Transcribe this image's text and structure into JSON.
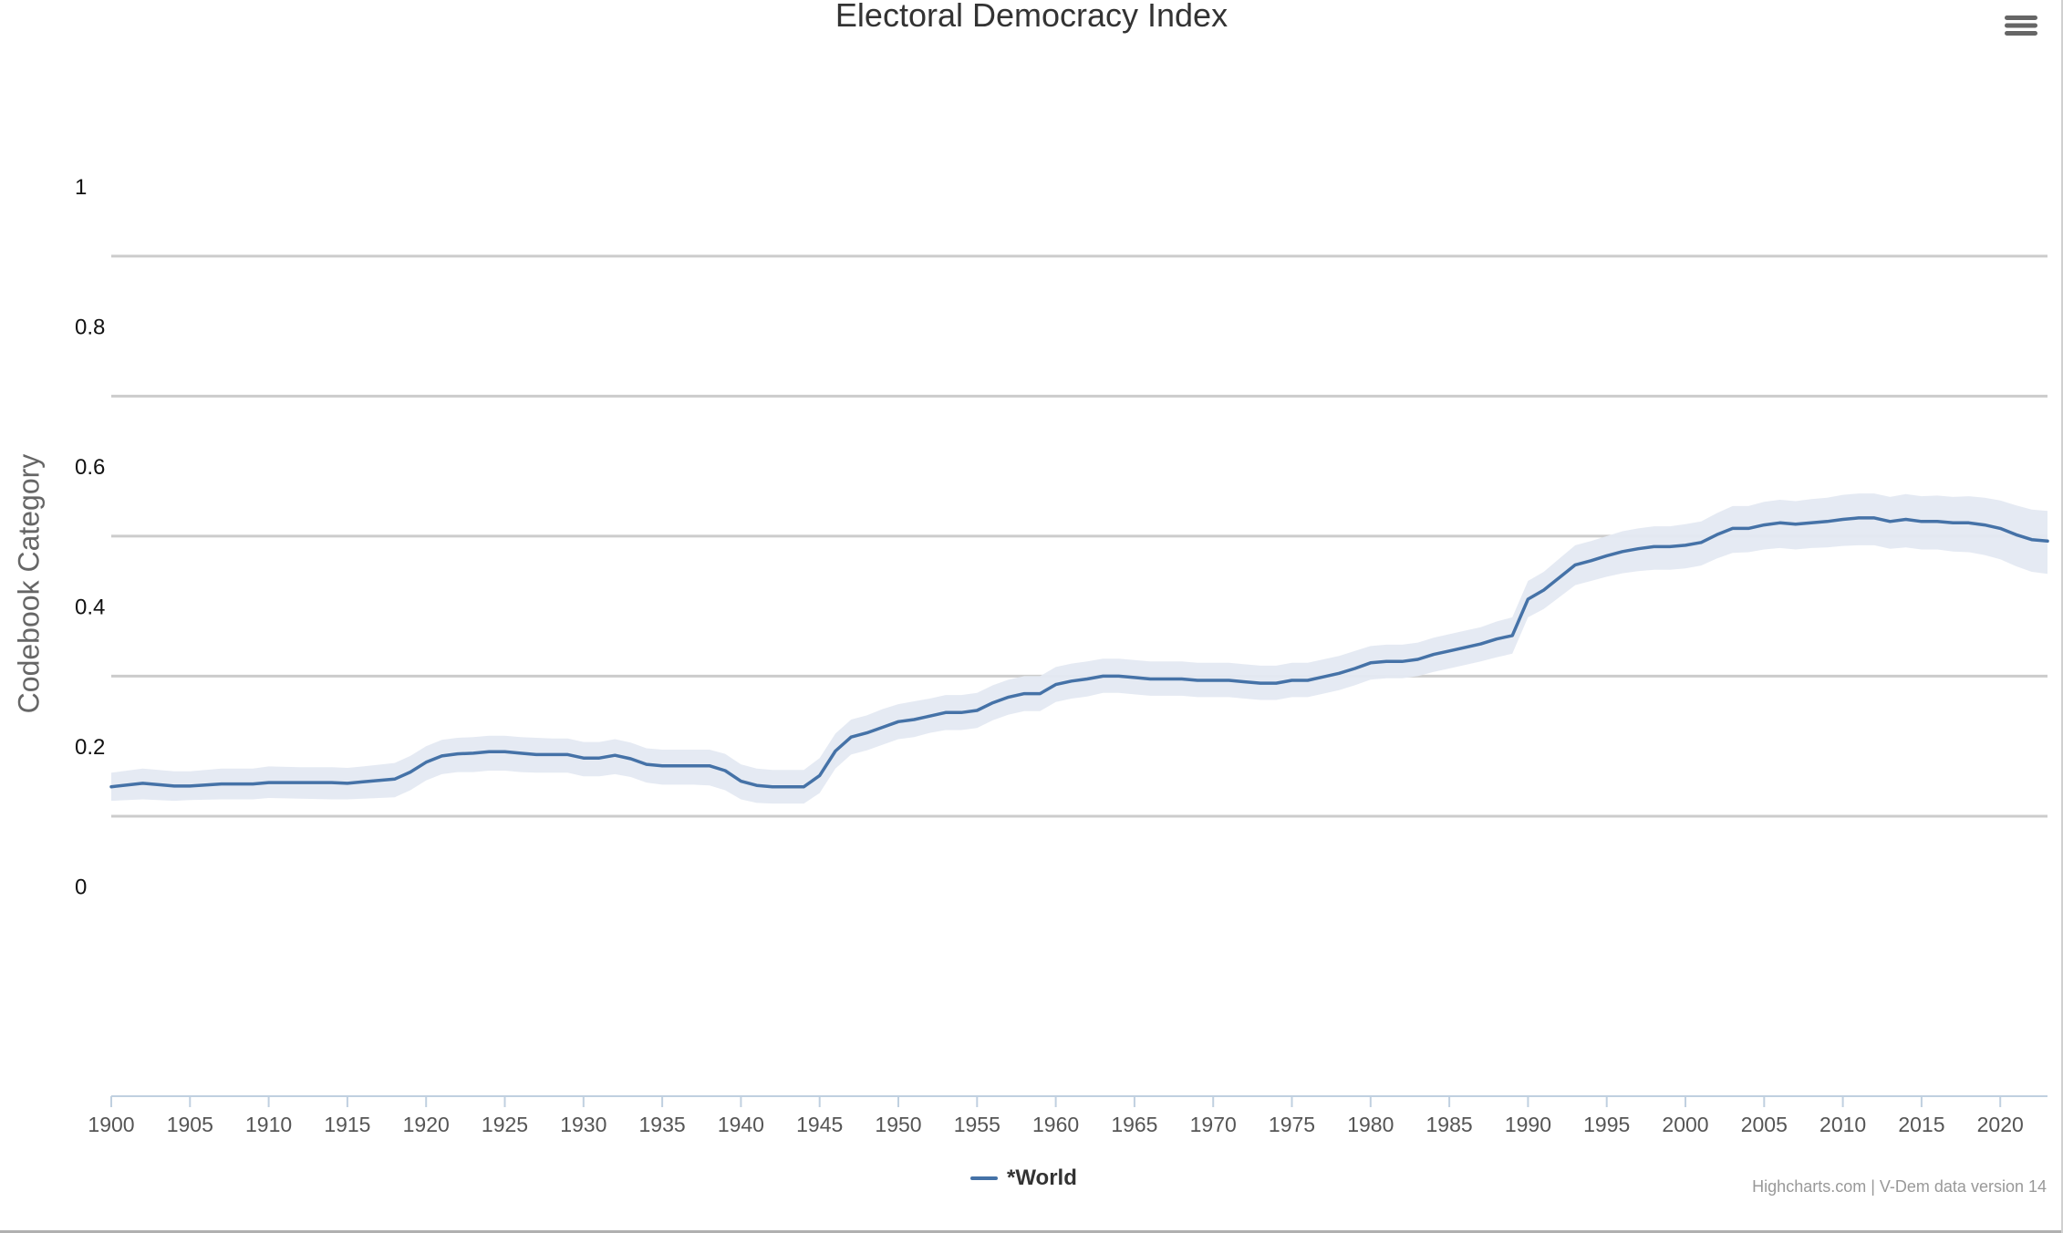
{
  "chart_data": {
    "type": "line",
    "title": "Electoral Democracy Index",
    "ylabel": "Codebook Category",
    "xlabel": "",
    "ylim": [
      -0.3,
      1.06
    ],
    "xlim": [
      1900,
      2023
    ],
    "y_ticks": [
      "1",
      "0.8",
      "0.6",
      "0.4",
      "0.2",
      "0"
    ],
    "x_ticks": [
      "1900",
      "1905",
      "1910",
      "1915",
      "1920",
      "1925",
      "1930",
      "1935",
      "1940",
      "1945",
      "1950",
      "1955",
      "1960",
      "1965",
      "1970",
      "1975",
      "1980",
      "1985",
      "1990",
      "1995",
      "2000",
      "2005",
      "2010",
      "2015",
      "2020"
    ],
    "grid": true,
    "legend_position": "bottom-center",
    "colors": {
      "line": "#4572a7",
      "band": "#e4e9f2",
      "grid": "#cccccc",
      "axis": "#c0d0e0"
    },
    "series": [
      {
        "name": "*World",
        "x": [
          1900,
          1902,
          1904,
          1905,
          1907,
          1909,
          1910,
          1912,
          1914,
          1915,
          1916,
          1918,
          1919,
          1920,
          1921,
          1922,
          1923,
          1924,
          1925,
          1926,
          1927,
          1928,
          1929,
          1930,
          1931,
          1932,
          1933,
          1934,
          1935,
          1936,
          1937,
          1938,
          1939,
          1940,
          1941,
          1942,
          1943,
          1944,
          1945,
          1946,
          1947,
          1948,
          1949,
          1950,
          1951,
          1952,
          1953,
          1954,
          1955,
          1956,
          1957,
          1958,
          1959,
          1960,
          1961,
          1962,
          1963,
          1964,
          1965,
          1966,
          1967,
          1968,
          1969,
          1970,
          1971,
          1972,
          1973,
          1974,
          1975,
          1976,
          1977,
          1978,
          1979,
          1980,
          1981,
          1982,
          1983,
          1984,
          1985,
          1986,
          1987,
          1988,
          1989,
          1990,
          1991,
          1992,
          1993,
          1994,
          1995,
          1996,
          1997,
          1998,
          1999,
          2000,
          2001,
          2002,
          2003,
          2004,
          2005,
          2006,
          2007,
          2008,
          2009,
          2010,
          2011,
          2012,
          2013,
          2014,
          2015,
          2016,
          2017,
          2018,
          2019,
          2020,
          2021,
          2022,
          2023
        ],
        "values": [
          0.142,
          0.147,
          0.143,
          0.143,
          0.146,
          0.146,
          0.148,
          0.148,
          0.148,
          0.147,
          0.149,
          0.153,
          0.163,
          0.177,
          0.186,
          0.189,
          0.19,
          0.192,
          0.192,
          0.19,
          0.188,
          0.188,
          0.188,
          0.183,
          0.183,
          0.187,
          0.182,
          0.174,
          0.172,
          0.172,
          0.172,
          0.172,
          0.165,
          0.15,
          0.144,
          0.142,
          0.142,
          0.142,
          0.158,
          0.193,
          0.213,
          0.219,
          0.227,
          0.235,
          0.238,
          0.243,
          0.248,
          0.248,
          0.251,
          0.262,
          0.27,
          0.275,
          0.275,
          0.288,
          0.293,
          0.296,
          0.3,
          0.3,
          0.298,
          0.296,
          0.296,
          0.296,
          0.294,
          0.294,
          0.294,
          0.292,
          0.29,
          0.29,
          0.294,
          0.294,
          0.299,
          0.304,
          0.311,
          0.319,
          0.321,
          0.321,
          0.324,
          0.331,
          0.336,
          0.341,
          0.346,
          0.353,
          0.358,
          0.41,
          0.423,
          0.441,
          0.459,
          0.465,
          0.472,
          0.478,
          0.482,
          0.485,
          0.485,
          0.487,
          0.491,
          0.502,
          0.511,
          0.511,
          0.516,
          0.519,
          0.517,
          0.519,
          0.521,
          0.524,
          0.526,
          0.526,
          0.521,
          0.524,
          0.521,
          0.521,
          0.519,
          0.519,
          0.516,
          0.511,
          0.502,
          0.495,
          0.493
        ],
        "lower": [
          0.122,
          0.124,
          0.122,
          0.123,
          0.124,
          0.124,
          0.126,
          0.125,
          0.124,
          0.124,
          0.125,
          0.127,
          0.137,
          0.151,
          0.16,
          0.163,
          0.163,
          0.165,
          0.165,
          0.163,
          0.162,
          0.162,
          0.162,
          0.157,
          0.157,
          0.16,
          0.156,
          0.148,
          0.145,
          0.145,
          0.145,
          0.144,
          0.137,
          0.124,
          0.119,
          0.118,
          0.118,
          0.118,
          0.133,
          0.168,
          0.188,
          0.194,
          0.202,
          0.21,
          0.213,
          0.219,
          0.223,
          0.223,
          0.226,
          0.237,
          0.245,
          0.25,
          0.25,
          0.263,
          0.268,
          0.271,
          0.276,
          0.276,
          0.274,
          0.272,
          0.272,
          0.272,
          0.27,
          0.27,
          0.27,
          0.268,
          0.266,
          0.266,
          0.27,
          0.27,
          0.275,
          0.28,
          0.287,
          0.295,
          0.297,
          0.297,
          0.3,
          0.306,
          0.311,
          0.316,
          0.321,
          0.327,
          0.332,
          0.384,
          0.396,
          0.413,
          0.43,
          0.436,
          0.442,
          0.447,
          0.45,
          0.452,
          0.452,
          0.454,
          0.458,
          0.468,
          0.476,
          0.477,
          0.481,
          0.483,
          0.481,
          0.483,
          0.484,
          0.486,
          0.487,
          0.487,
          0.482,
          0.484,
          0.481,
          0.481,
          0.478,
          0.477,
          0.473,
          0.467,
          0.457,
          0.449,
          0.446
        ],
        "upper": [
          0.162,
          0.168,
          0.164,
          0.164,
          0.168,
          0.168,
          0.171,
          0.17,
          0.17,
          0.169,
          0.171,
          0.176,
          0.186,
          0.2,
          0.209,
          0.212,
          0.213,
          0.215,
          0.215,
          0.213,
          0.212,
          0.211,
          0.211,
          0.206,
          0.206,
          0.21,
          0.205,
          0.197,
          0.195,
          0.195,
          0.195,
          0.195,
          0.189,
          0.174,
          0.168,
          0.166,
          0.166,
          0.166,
          0.183,
          0.218,
          0.238,
          0.244,
          0.253,
          0.26,
          0.264,
          0.268,
          0.273,
          0.273,
          0.276,
          0.287,
          0.295,
          0.3,
          0.3,
          0.313,
          0.318,
          0.321,
          0.325,
          0.325,
          0.323,
          0.321,
          0.321,
          0.321,
          0.319,
          0.319,
          0.319,
          0.317,
          0.315,
          0.315,
          0.319,
          0.319,
          0.324,
          0.329,
          0.336,
          0.343,
          0.345,
          0.345,
          0.348,
          0.355,
          0.36,
          0.365,
          0.37,
          0.378,
          0.384,
          0.436,
          0.449,
          0.468,
          0.487,
          0.493,
          0.5,
          0.507,
          0.511,
          0.514,
          0.514,
          0.517,
          0.521,
          0.533,
          0.543,
          0.543,
          0.549,
          0.552,
          0.55,
          0.553,
          0.555,
          0.559,
          0.561,
          0.561,
          0.556,
          0.56,
          0.557,
          0.558,
          0.556,
          0.557,
          0.555,
          0.551,
          0.544,
          0.538,
          0.536
        ]
      }
    ]
  },
  "menu": {
    "icon": "hamburger-menu-icon"
  },
  "credits": "Highcharts.com | V-Dem data version 14"
}
